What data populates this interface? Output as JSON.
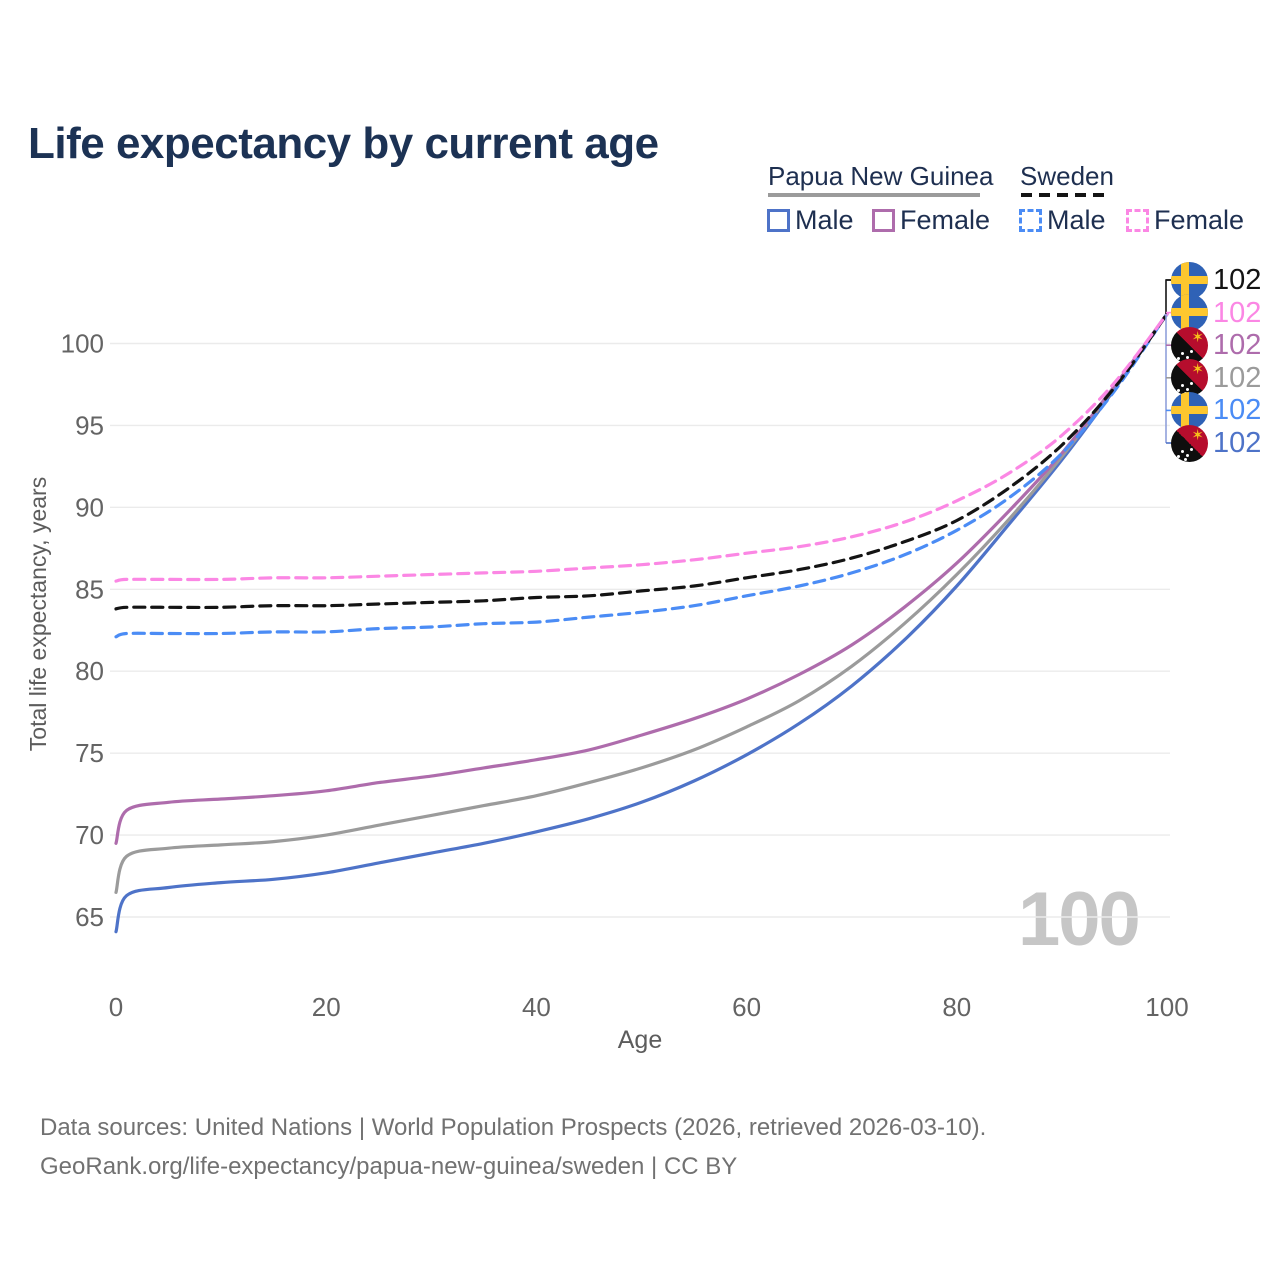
{
  "title": "Life expectancy by current age",
  "watermark": "100",
  "legend": {
    "png": {
      "header": "Papua New Guinea",
      "male": "Male",
      "female": "Female"
    },
    "sweden": {
      "header": "Sweden",
      "male": "Male",
      "female": "Female"
    }
  },
  "footer": {
    "line1": "Data sources: United Nations | World Population Prospects (2026, retrieved 2026-03-10).",
    "line2": "GeoRank.org/life-expectancy/papua-new-guinea/sweden | CC BY"
  },
  "colors": {
    "title_text": "#1c3254",
    "legend_text": "#1e2f50",
    "tick_text": "#646464",
    "axis_title_text": "#5c5c5c",
    "gridline": "#ebebeb",
    "footer_text": "#717171",
    "watermark": "#c6c6c6",
    "leader_line": "#8fa0da",
    "sweden_flag_blue": "#2f62b6",
    "sweden_flag_yellow": "#fdc72f",
    "png_flag_red": "#b60d2d",
    "png_flag_black": "#0e0e0e"
  },
  "chart_data": {
    "type": "line",
    "title": "Life expectancy by current age",
    "xlabel": "Age",
    "ylabel": "Total life expectancy, years",
    "x_ticks": [
      0,
      20,
      40,
      60,
      80,
      100
    ],
    "y_ticks": [
      65,
      70,
      75,
      80,
      85,
      90,
      95,
      100
    ],
    "xlim": [
      0,
      100
    ],
    "ylim": [
      64,
      102
    ],
    "grid": "horizontal-only",
    "legend_position": "top-right",
    "x": [
      0,
      1,
      5,
      10,
      15,
      20,
      25,
      30,
      35,
      40,
      45,
      50,
      55,
      60,
      65,
      70,
      75,
      80,
      85,
      90,
      95,
      100
    ],
    "series": [
      {
        "id": "png_male",
        "name": "Papua New Guinea Male",
        "country": "Papua New Guinea",
        "sex": "Male",
        "line": "solid",
        "color": "#4e73c8",
        "values": [
          64.1,
          66.3,
          66.8,
          67.1,
          67.3,
          67.7,
          68.3,
          68.9,
          69.5,
          70.2,
          71.0,
          72.0,
          73.3,
          74.9,
          76.8,
          79.1,
          81.9,
          85.2,
          89.0,
          92.9,
          97.2,
          101.8
        ]
      },
      {
        "id": "png_both",
        "name": "Papua New Guinea Both sexes",
        "country": "Papua New Guinea",
        "sex": "Both",
        "line": "solid",
        "color": "#9b9b9b",
        "values": [
          66.5,
          68.7,
          69.2,
          69.4,
          69.6,
          70.0,
          70.6,
          71.2,
          71.8,
          72.4,
          73.2,
          74.1,
          75.2,
          76.6,
          78.2,
          80.3,
          82.9,
          85.9,
          89.3,
          93.1,
          97.3,
          101.8
        ]
      },
      {
        "id": "png_female",
        "name": "Papua New Guinea Female",
        "country": "Papua New Guinea",
        "sex": "Female",
        "line": "solid",
        "color": "#ae6cac",
        "values": [
          69.5,
          71.5,
          72.0,
          72.2,
          72.4,
          72.7,
          73.2,
          73.6,
          74.1,
          74.6,
          75.2,
          76.1,
          77.1,
          78.3,
          79.8,
          81.6,
          83.9,
          86.6,
          89.8,
          93.3,
          97.4,
          101.8
        ]
      },
      {
        "id": "swe_male",
        "name": "Sweden Male",
        "country": "Sweden",
        "sex": "Male",
        "line": "dashed",
        "color": "#4b8cf5",
        "values": [
          82.1,
          82.3,
          82.3,
          82.3,
          82.4,
          82.4,
          82.6,
          82.7,
          82.9,
          83.0,
          83.3,
          83.6,
          84.0,
          84.6,
          85.2,
          86.0,
          87.1,
          88.6,
          90.6,
          93.3,
          97.1,
          101.8
        ]
      },
      {
        "id": "swe_both",
        "name": "Sweden Both sexes",
        "country": "Sweden",
        "sex": "Both",
        "line": "dashed",
        "color": "#141414",
        "values": [
          83.8,
          83.9,
          83.9,
          83.9,
          84.0,
          84.0,
          84.1,
          84.2,
          84.3,
          84.5,
          84.6,
          84.9,
          85.2,
          85.7,
          86.2,
          86.9,
          87.9,
          89.2,
          91.2,
          93.8,
          97.3,
          101.8
        ]
      },
      {
        "id": "swe_female",
        "name": "Sweden Female",
        "country": "Sweden",
        "sex": "Female",
        "line": "dashed",
        "color": "#fb87e4",
        "values": [
          85.5,
          85.6,
          85.6,
          85.6,
          85.7,
          85.7,
          85.8,
          85.9,
          86.0,
          86.1,
          86.3,
          86.5,
          86.8,
          87.2,
          87.6,
          88.2,
          89.1,
          90.4,
          92.1,
          94.4,
          97.6,
          101.8
        ]
      }
    ],
    "end_labels": [
      {
        "flag": "sweden",
        "value": "102",
        "series": "swe_both"
      },
      {
        "flag": "sweden",
        "value": "102",
        "series": "swe_female"
      },
      {
        "flag": "png",
        "value": "102",
        "series": "png_female"
      },
      {
        "flag": "png",
        "value": "102",
        "series": "png_both"
      },
      {
        "flag": "sweden",
        "value": "102",
        "series": "swe_male"
      },
      {
        "flag": "png",
        "value": "102",
        "series": "png_male"
      }
    ]
  }
}
